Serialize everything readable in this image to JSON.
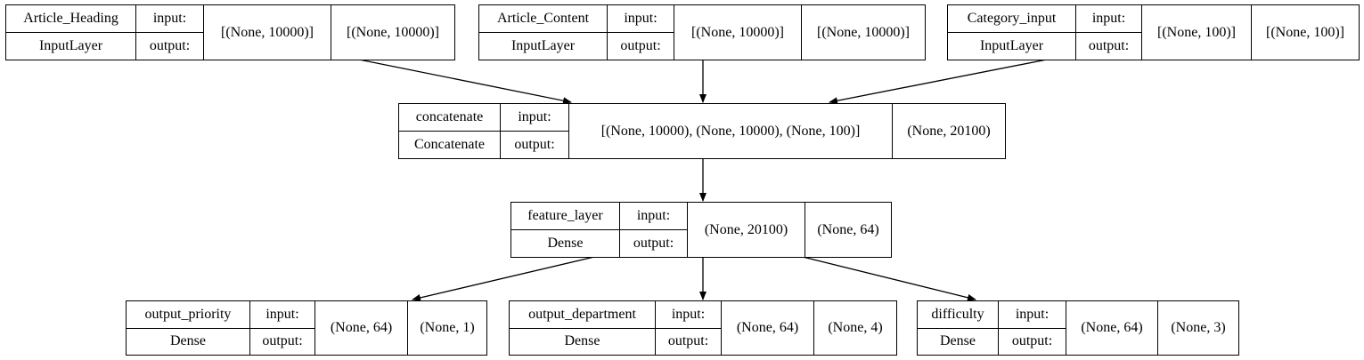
{
  "nodes": [
    {
      "key": "article_heading",
      "name": "Article_Heading",
      "type": "InputLayer",
      "in_label": "input:",
      "out_label": "output:",
      "input_shape": "[(None, 10000)]",
      "output_shape": "[(None, 10000)]"
    },
    {
      "key": "article_content",
      "name": "Article_Content",
      "type": "InputLayer",
      "in_label": "input:",
      "out_label": "output:",
      "input_shape": "[(None, 10000)]",
      "output_shape": "[(None, 10000)]"
    },
    {
      "key": "category_input",
      "name": "Category_input",
      "type": "InputLayer",
      "in_label": "input:",
      "out_label": "output:",
      "input_shape": "[(None, 100)]",
      "output_shape": "[(None, 100)]"
    },
    {
      "key": "concatenate",
      "name": "concatenate",
      "type": "Concatenate",
      "in_label": "input:",
      "out_label": "output:",
      "input_shape": "[(None, 10000), (None, 10000), (None, 100)]",
      "output_shape": "(None, 20100)"
    },
    {
      "key": "feature_layer",
      "name": "feature_layer",
      "type": "Dense",
      "in_label": "input:",
      "out_label": "output:",
      "input_shape": "(None, 20100)",
      "output_shape": "(None, 64)"
    },
    {
      "key": "output_priority",
      "name": "output_priority",
      "type": "Dense",
      "in_label": "input:",
      "out_label": "output:",
      "input_shape": "(None, 64)",
      "output_shape": "(None, 1)"
    },
    {
      "key": "output_department",
      "name": "output_department",
      "type": "Dense",
      "in_label": "input:",
      "out_label": "output:",
      "input_shape": "(None, 64)",
      "output_shape": "(None, 4)"
    },
    {
      "key": "difficulty",
      "name": "difficulty",
      "type": "Dense",
      "in_label": "input:",
      "out_label": "output:",
      "input_shape": "(None, 64)",
      "output_shape": "(None, 3)"
    }
  ],
  "edges": [
    {
      "from": "article_heading",
      "to": "concatenate"
    },
    {
      "from": "article_content",
      "to": "concatenate"
    },
    {
      "from": "category_input",
      "to": "concatenate"
    },
    {
      "from": "concatenate",
      "to": "feature_layer"
    },
    {
      "from": "feature_layer",
      "to": "output_priority"
    },
    {
      "from": "feature_layer",
      "to": "output_department"
    },
    {
      "from": "feature_layer",
      "to": "difficulty"
    }
  ]
}
